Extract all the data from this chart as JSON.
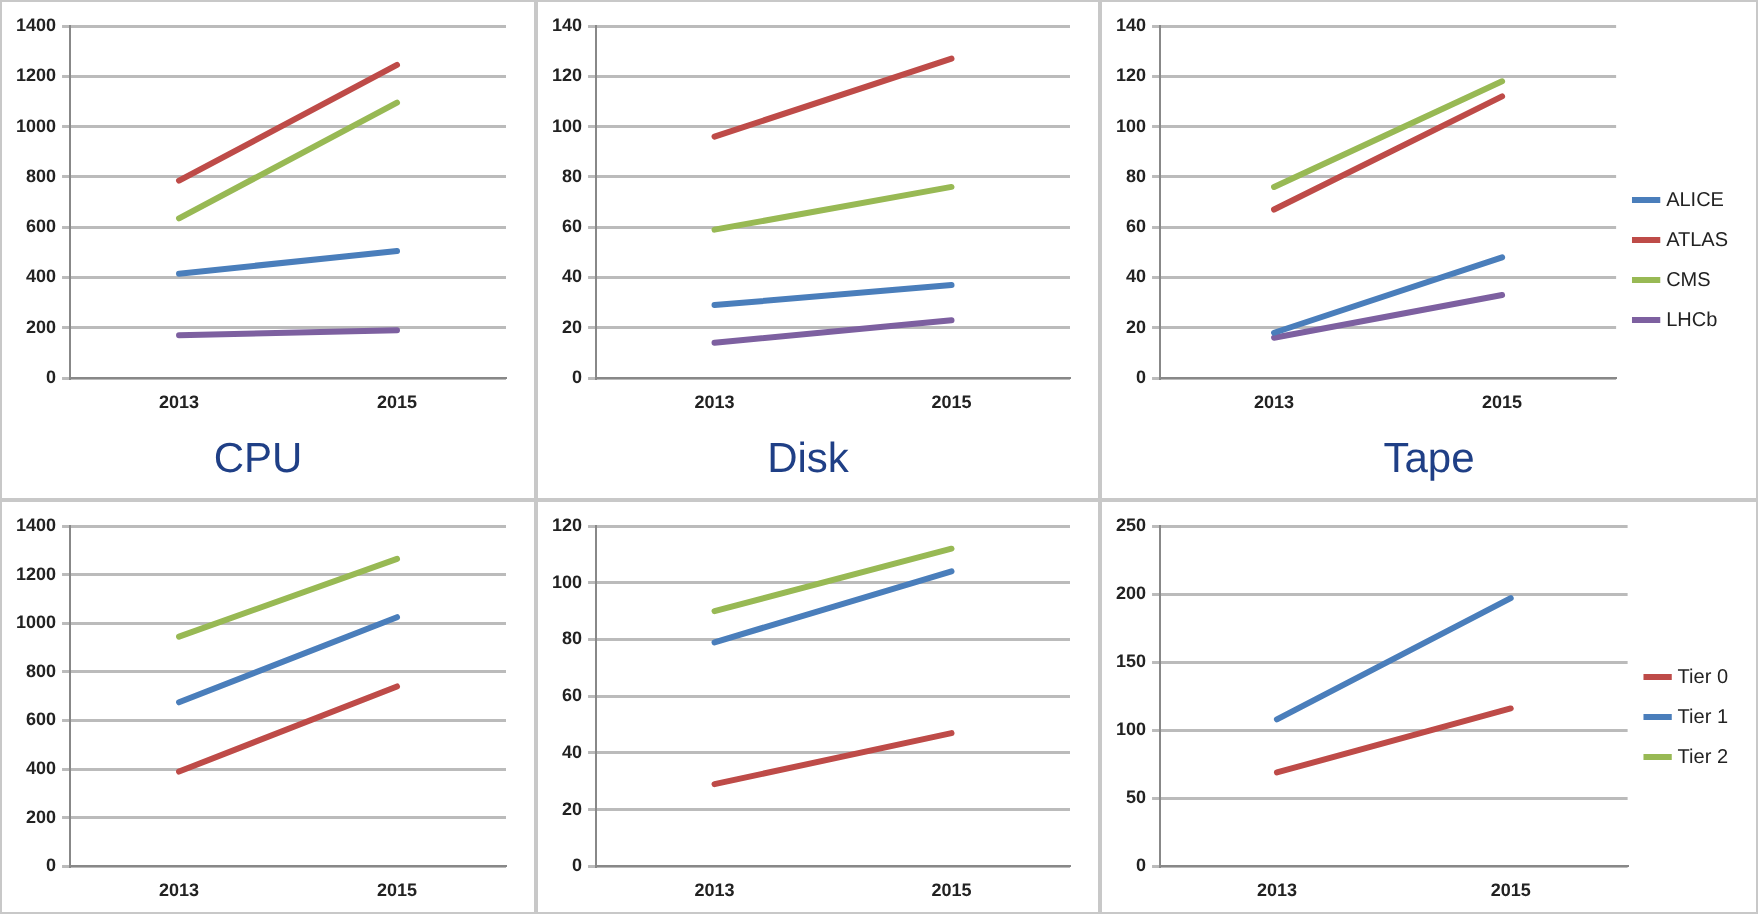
{
  "chart_data": [
    {
      "type": "line",
      "title": "CPU",
      "categories": [
        "2013",
        "2015"
      ],
      "ylim": [
        0,
        1400
      ],
      "yticks": [
        0,
        200,
        400,
        600,
        800,
        1000,
        1200,
        1400
      ],
      "grid": "y",
      "legend": false,
      "marker": "none",
      "line_style": "solid",
      "series": [
        {
          "color": "#4a7ebb",
          "values": [
            415,
            505
          ]
        },
        {
          "color": "#be4b48",
          "values": [
            785,
            1245
          ]
        },
        {
          "color": "#98b954",
          "values": [
            635,
            1095
          ]
        },
        {
          "color": "#7d60a0",
          "values": [
            170,
            190
          ]
        }
      ]
    },
    {
      "type": "line",
      "title": "Disk",
      "categories": [
        "2013",
        "2015"
      ],
      "ylim": [
        0,
        140
      ],
      "yticks": [
        0,
        20,
        40,
        60,
        80,
        100,
        120,
        140
      ],
      "grid": "y",
      "legend": false,
      "marker": "none",
      "line_style": "solid",
      "series": [
        {
          "color": "#4a7ebb",
          "values": [
            29,
            37
          ]
        },
        {
          "color": "#be4b48",
          "values": [
            96,
            127
          ]
        },
        {
          "color": "#98b954",
          "values": [
            59,
            76
          ]
        },
        {
          "color": "#7d60a0",
          "values": [
            14,
            23
          ]
        }
      ]
    },
    {
      "type": "line",
      "title": "Tape",
      "categories": [
        "2013",
        "2015"
      ],
      "ylim": [
        0,
        140
      ],
      "yticks": [
        0,
        20,
        40,
        60,
        80,
        100,
        120,
        140
      ],
      "grid": "y",
      "legend": "right",
      "marker": "none",
      "line_style": "solid",
      "series": [
        {
          "name": "ALICE",
          "color": "#4a7ebb",
          "values": [
            18,
            48
          ]
        },
        {
          "name": "ATLAS",
          "color": "#be4b48",
          "values": [
            67,
            112
          ]
        },
        {
          "name": "CMS",
          "color": "#98b954",
          "values": [
            76,
            118
          ]
        },
        {
          "name": "LHCb",
          "color": "#7d60a0",
          "values": [
            16,
            33
          ]
        }
      ]
    },
    {
      "type": "line",
      "categories": [
        "2013",
        "2015"
      ],
      "ylim": [
        0,
        1400
      ],
      "yticks": [
        0,
        200,
        400,
        600,
        800,
        1000,
        1200,
        1400
      ],
      "grid": "y",
      "legend": false,
      "marker": "none",
      "line_style": "solid",
      "series": [
        {
          "color": "#be4b48",
          "values": [
            390,
            740
          ]
        },
        {
          "color": "#4a7ebb",
          "values": [
            675,
            1025
          ]
        },
        {
          "color": "#98b954",
          "values": [
            945,
            1265
          ]
        }
      ]
    },
    {
      "type": "line",
      "categories": [
        "2013",
        "2015"
      ],
      "ylim": [
        0,
        120
      ],
      "yticks": [
        0,
        20,
        40,
        60,
        80,
        100,
        120
      ],
      "grid": "y",
      "legend": false,
      "marker": "none",
      "line_style": "solid",
      "series": [
        {
          "color": "#be4b48",
          "values": [
            29,
            47
          ]
        },
        {
          "color": "#4a7ebb",
          "values": [
            79,
            104
          ]
        },
        {
          "color": "#98b954",
          "values": [
            90,
            112
          ]
        }
      ]
    },
    {
      "type": "line",
      "categories": [
        "2013",
        "2015"
      ],
      "ylim": [
        0,
        250
      ],
      "yticks": [
        0,
        50,
        100,
        150,
        200,
        250
      ],
      "grid": "y",
      "legend": "right",
      "marker": "none",
      "line_style": "solid",
      "series": [
        {
          "name": "Tier 0",
          "color": "#be4b48",
          "values": [
            69,
            116
          ]
        },
        {
          "name": "Tier 1",
          "color": "#4a7ebb",
          "values": [
            108,
            197
          ]
        },
        {
          "name": "Tier 2",
          "color": "#98b954",
          "values": [
            null,
            null
          ]
        }
      ]
    }
  ]
}
